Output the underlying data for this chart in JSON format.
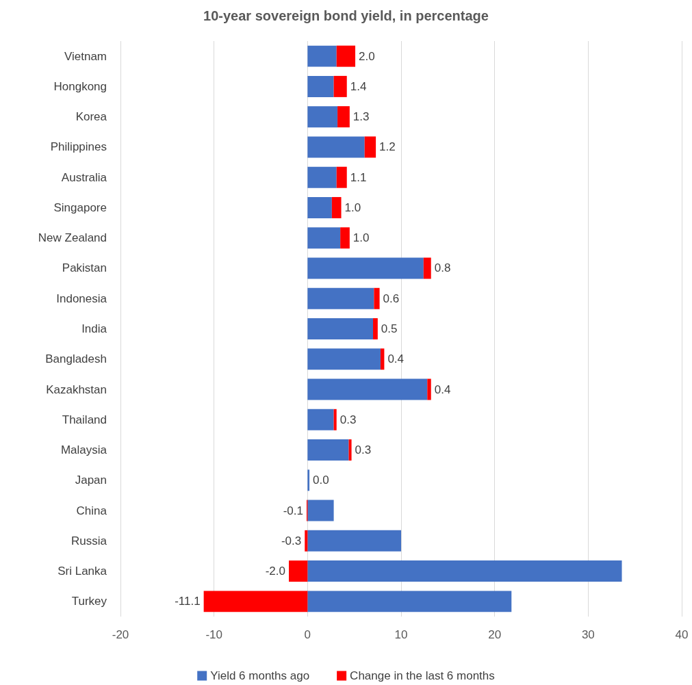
{
  "chart_data": {
    "type": "bar",
    "orientation": "horizontal",
    "stacked": true,
    "title": "10-year sovereign bond yield, in percentage",
    "categories": [
      "Vietnam",
      "Hongkong",
      "Korea",
      "Philippines",
      "Australia",
      "Singapore",
      "New Zealand",
      "Pakistan",
      "Indonesia",
      "India",
      "Bangladesh",
      "Kazakhstan",
      "Thailand",
      "Malaysia",
      "Japan",
      "China",
      "Russia",
      "Sri Lanka",
      "Turkey"
    ],
    "series": [
      {
        "name": "Yield 6 months ago",
        "color": "#4472c4",
        "values": [
          3.1,
          2.8,
          3.2,
          6.1,
          3.1,
          2.6,
          3.5,
          12.4,
          7.1,
          7.0,
          7.8,
          12.8,
          2.8,
          4.4,
          0.2,
          2.8,
          10.0,
          33.6,
          21.8
        ]
      },
      {
        "name": "Change in the last 6 months",
        "color": "#ff0000",
        "values": [
          2.0,
          1.4,
          1.3,
          1.2,
          1.1,
          1.0,
          1.0,
          0.8,
          0.6,
          0.5,
          0.4,
          0.4,
          0.3,
          0.3,
          0.0,
          -0.1,
          -0.3,
          -2.0,
          -11.1
        ],
        "value_labels": [
          "2.0",
          "1.4",
          "1.3",
          "1.2",
          "1.1",
          "1.0",
          "1.0",
          "0.8",
          "0.6",
          "0.5",
          "0.4",
          "0.4",
          "0.3",
          "0.3",
          "0.0",
          "-0.1",
          "-0.3",
          "-2.0",
          "-11.1"
        ]
      }
    ],
    "xlim": [
      -20,
      40
    ],
    "xticks": [
      -20,
      -10,
      0,
      10,
      20,
      30,
      40
    ],
    "grid": "x",
    "legend": "bottom"
  }
}
